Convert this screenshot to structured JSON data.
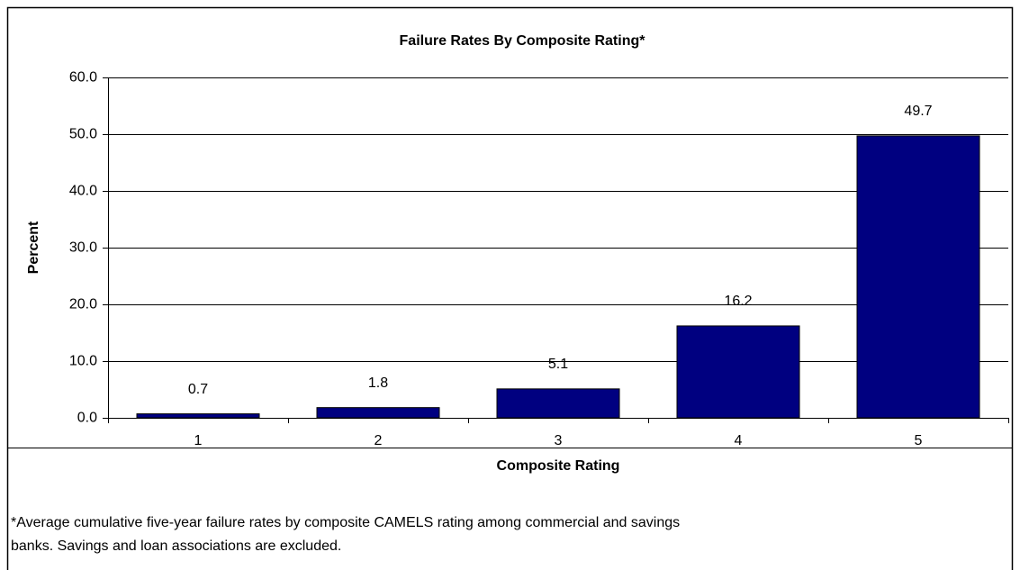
{
  "chart_data": {
    "type": "bar",
    "title": "Failure Rates By Composite Rating*",
    "y_label": "Percent",
    "x_label": "Composite Rating",
    "categories": [
      "1",
      "2",
      "3",
      "4",
      "5"
    ],
    "values": [
      0.7,
      1.8,
      5.1,
      16.2,
      49.7
    ],
    "color": "#000080",
    "ylim": [
      0,
      60
    ],
    "yticks": [
      {
        "value": 0,
        "label": "0.0"
      },
      {
        "value": 10,
        "label": "10.0"
      },
      {
        "value": 20,
        "label": "20.0"
      },
      {
        "value": 30,
        "label": "30.0"
      },
      {
        "value": 40,
        "label": "40.0"
      },
      {
        "value": 50,
        "label": "50.0"
      },
      {
        "value": 60,
        "label": "60.0"
      }
    ],
    "grid": true,
    "footnote": [
      "*Average cumulative five-year failure rates by composite CAMELS rating among commercial and savings",
      "banks.  Savings and loan associations are excluded."
    ]
  }
}
